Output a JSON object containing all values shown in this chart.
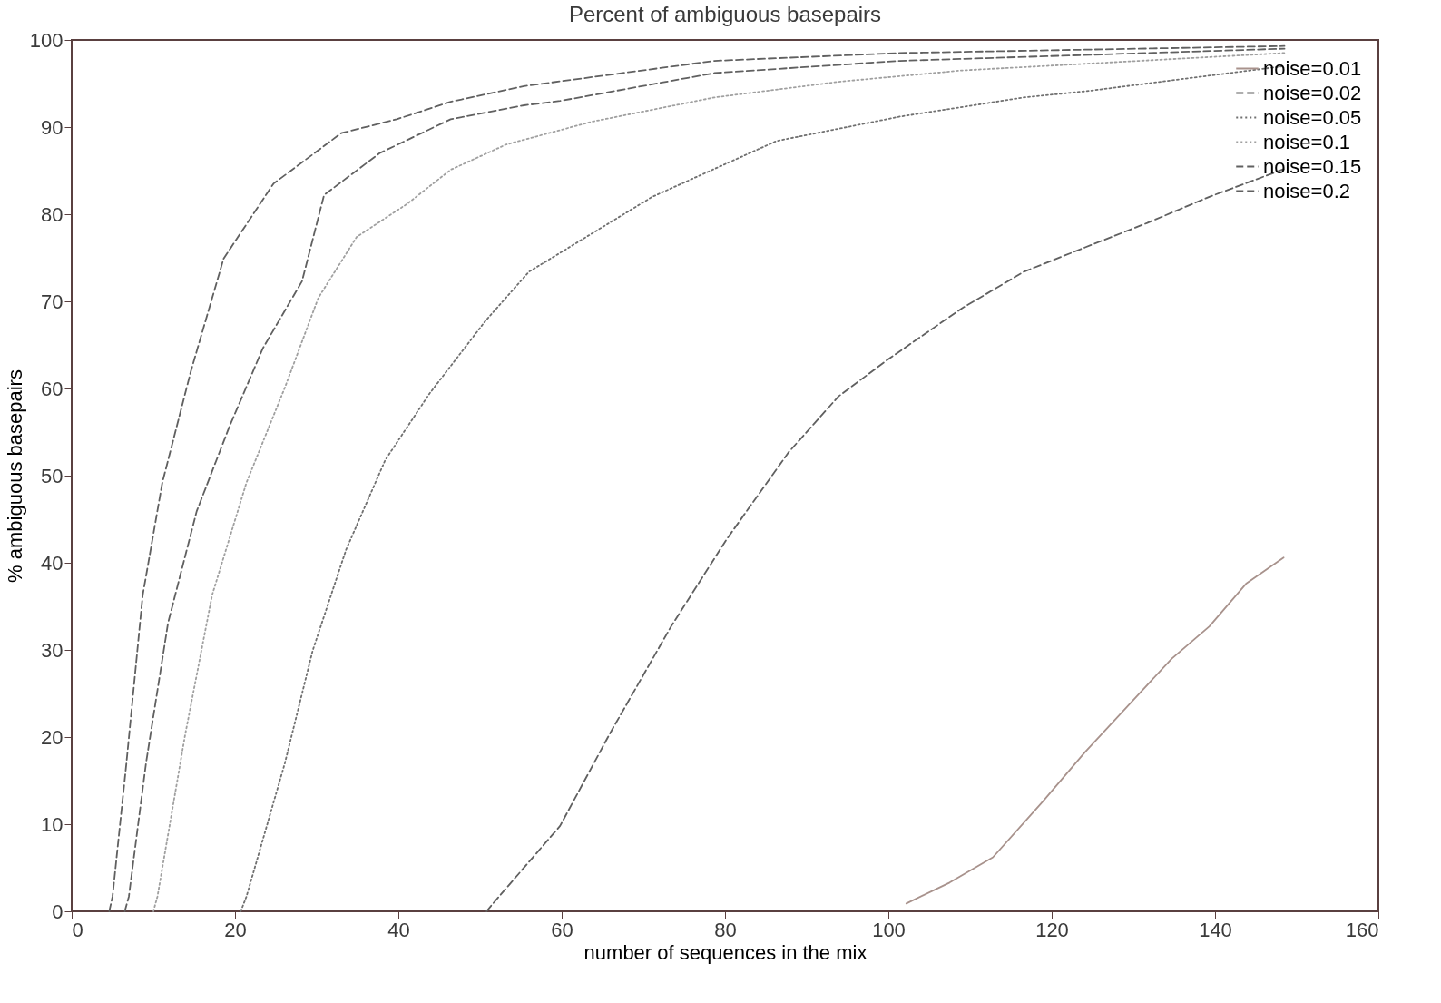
{
  "chart_data": {
    "type": "line",
    "title": "Percent of ambiguous basepairs",
    "xlabel": "number of sequences in the mix",
    "ylabel": "% ambiguous basepairs",
    "xlim": [
      0,
      160
    ],
    "ylim": [
      0,
      100
    ],
    "xticks": [
      0,
      20,
      40,
      60,
      80,
      100,
      120,
      140,
      160
    ],
    "yticks": [
      0,
      10,
      20,
      30,
      40,
      50,
      60,
      70,
      80,
      90,
      100
    ],
    "grid": false,
    "legend": "top right",
    "marker": "none",
    "series": [
      {
        "name": "noise=0.01",
        "color": "#a8928c",
        "line_style": "solid",
        "x": [
          102.2,
          107.5,
          112.8,
          118.9,
          124.1,
          134.7,
          139.3,
          143.8,
          148.4
        ],
        "values": [
          0.9,
          3.3,
          6.2,
          12.6,
          18.3,
          29,
          32.7,
          37.6,
          40.6
        ]
      },
      {
        "name": "noise=0.02",
        "color": "#606060",
        "line_style": "dashed",
        "x": [
          50.8,
          51.5,
          59.8,
          65.9,
          73.4,
          80.2,
          87.8,
          93.9,
          99.9,
          109,
          116.6,
          124.1,
          131.7,
          139.3,
          148.5
        ],
        "values": [
          0,
          0.8,
          9.8,
          20.4,
          32.7,
          42.7,
          52.7,
          59.1,
          63.3,
          69.2,
          73.4,
          76.2,
          79,
          82,
          85.2
        ]
      },
      {
        "name": "noise=0.05",
        "color": "#707070",
        "line_style": "dotted",
        "x": [
          20.7,
          21.4,
          26.1,
          29.5,
          33.6,
          38.4,
          43.8,
          50.7,
          56,
          71.1,
          86.3,
          101.4,
          116.6,
          124.1,
          148.5
        ],
        "values": [
          0,
          1.7,
          17,
          29.9,
          41.5,
          51.8,
          59.4,
          67.8,
          73.4,
          82,
          88.4,
          91.2,
          93.4,
          94.1,
          97
        ]
      },
      {
        "name": "noise=0.1",
        "color": "#a0a0a0",
        "line_style": "dotted",
        "x": [
          10,
          10.5,
          13.9,
          17.2,
          21.4,
          26.1,
          30.2,
          34.9,
          41.1,
          46.4,
          53.2,
          63.6,
          78.7,
          93.9,
          109,
          148.5
        ],
        "values": [
          0,
          1.7,
          20.3,
          36.3,
          49.2,
          60.1,
          70.4,
          77.4,
          81.2,
          85.1,
          88,
          90.6,
          93.4,
          95.2,
          96.5,
          98.5
        ]
      },
      {
        "name": "noise=0.15",
        "color": "#606060",
        "line_style": "dashed",
        "x": [
          6.5,
          7,
          9.1,
          11.8,
          15.3,
          19.3,
          23.4,
          28.2,
          30.9,
          37.7,
          46.4,
          55.4,
          59.8,
          78.7,
          101.4,
          148.5
        ],
        "values": [
          0,
          1.7,
          17,
          33.1,
          45.9,
          55.6,
          64.6,
          72.3,
          82.2,
          87,
          90.9,
          92.5,
          93,
          96.2,
          97.6,
          99
        ]
      },
      {
        "name": "noise=0.2",
        "color": "#606060",
        "line_style": "dashed",
        "x": [
          4.6,
          5,
          6.7,
          8.7,
          11.1,
          14.6,
          18.6,
          24.7,
          33,
          39.8,
          46.4,
          55.4,
          78.7,
          101.4,
          148.5
        ],
        "values": [
          0,
          1.7,
          17,
          36.3,
          49.2,
          62,
          74.9,
          83.5,
          89.3,
          90.9,
          92.9,
          94.7,
          97.6,
          98.5,
          99.3
        ]
      }
    ]
  }
}
